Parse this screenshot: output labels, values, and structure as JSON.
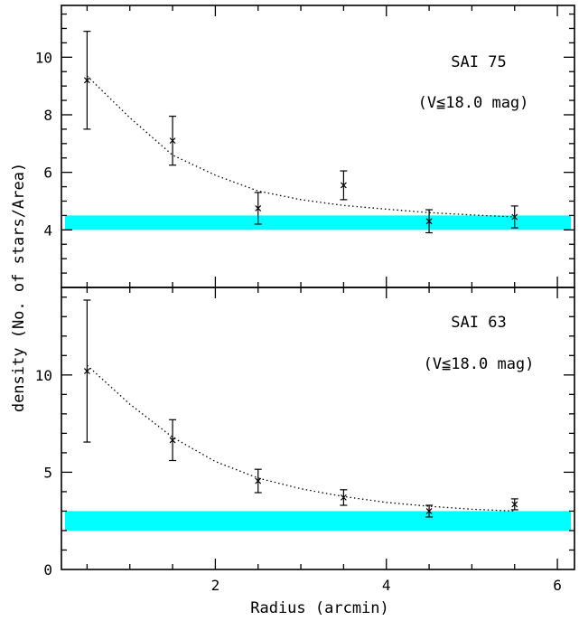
{
  "chart_data": [
    {
      "type": "scatter",
      "panel": "top",
      "title": "",
      "xlabel": "Radius (arcmin)",
      "ylabel": "density (No. of stars/Area)",
      "xlim": [
        0.2,
        6.2
      ],
      "ylim": [
        2,
        11.8
      ],
      "grid": false,
      "x_ticks": [
        2,
        4,
        6
      ],
      "y_ticks": [
        4,
        6,
        8,
        10
      ],
      "y_tick_labels": [
        "4",
        "6",
        "8",
        "10"
      ],
      "annotations": [
        "SAI 75",
        "(V≦18.0 mag)"
      ],
      "series": [
        {
          "x": [
            0.5,
            1.5,
            2.5,
            3.5,
            4.5,
            5.5
          ],
          "y": [
            9.2,
            7.1,
            4.75,
            5.55,
            4.3,
            4.45
          ],
          "yerr": [
            1.7,
            0.85,
            0.55,
            0.5,
            0.4,
            0.38
          ]
        }
      ],
      "fit_curve": {
        "style": "dotted",
        "x": [
          0.5,
          1.0,
          1.5,
          2.0,
          2.5,
          3.0,
          3.5,
          4.0,
          4.5,
          5.0,
          5.5
        ],
        "y": [
          9.35,
          7.9,
          6.6,
          5.9,
          5.35,
          5.05,
          4.85,
          4.72,
          4.6,
          4.52,
          4.45
        ]
      },
      "background_band": {
        "ymin": 4.0,
        "ymax": 4.5,
        "color": "#00ffff"
      }
    },
    {
      "type": "scatter",
      "panel": "bottom",
      "title": "",
      "xlabel": "Radius (arcmin)",
      "ylabel": "density (No. of stars/Area)",
      "xlim": [
        0.2,
        6.2
      ],
      "ylim": [
        0,
        14.5
      ],
      "grid": false,
      "x_ticks": [
        2,
        4,
        6
      ],
      "x_tick_labels": [
        "2",
        "4",
        "6"
      ],
      "y_ticks": [
        0,
        5,
        10
      ],
      "y_tick_labels": [
        "0",
        "5",
        "10"
      ],
      "annotations": [
        "SAI 63",
        "(V≦18.0 mag)"
      ],
      "series": [
        {
          "x": [
            0.5,
            1.5,
            2.5,
            3.5,
            4.5,
            5.5
          ],
          "y": [
            10.2,
            6.65,
            4.55,
            3.7,
            3.0,
            3.35
          ],
          "yerr": [
            3.65,
            1.05,
            0.6,
            0.4,
            0.3,
            0.28
          ]
        }
      ],
      "fit_curve": {
        "style": "dotted",
        "x": [
          0.5,
          1.0,
          1.5,
          2.0,
          2.5,
          3.0,
          3.5,
          4.0,
          4.5,
          5.0,
          5.5
        ],
        "y": [
          10.5,
          8.5,
          6.8,
          5.55,
          4.7,
          4.15,
          3.75,
          3.45,
          3.25,
          3.1,
          3.0
        ]
      },
      "background_band": {
        "ymin": 2.0,
        "ymax": 3.0,
        "color": "#00ffff"
      }
    }
  ]
}
